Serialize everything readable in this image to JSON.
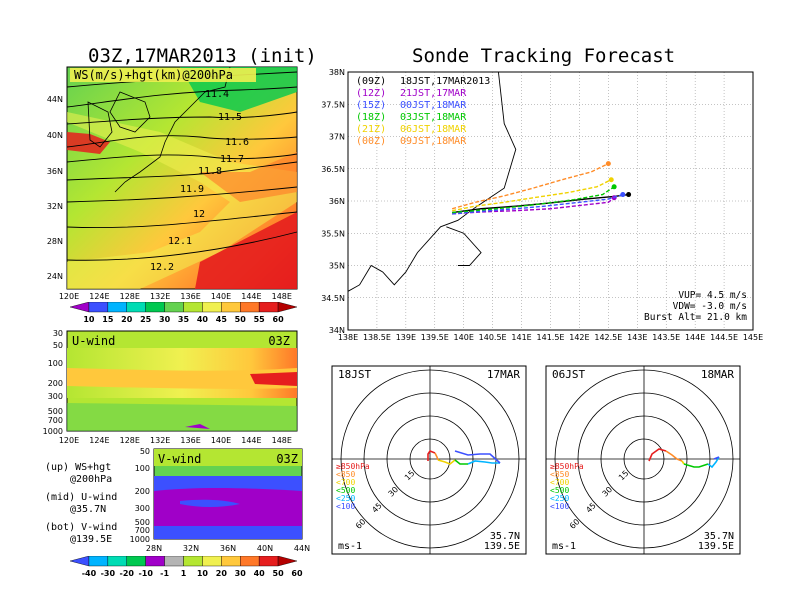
{
  "left": {
    "title": "03Z,17MAR2013 (init)",
    "map_overlay_label": "WS(m/s)+hgt(km)@200hPa",
    "contour_labels": [
      "11.4",
      "11.5",
      "11.6",
      "11.7",
      "11.8",
      "11.9",
      "12",
      "12.1",
      "12.2"
    ],
    "map_lat_ticks": [
      "44N",
      "40N",
      "36N",
      "32N",
      "28N",
      "24N"
    ],
    "lon_ticks": [
      "120E",
      "124E",
      "128E",
      "132E",
      "136E",
      "140E",
      "144E",
      "148E"
    ],
    "ws_colorbar": {
      "labels": [
        "10",
        "15",
        "20",
        "25",
        "30",
        "35",
        "40",
        "45",
        "50",
        "55",
        "60"
      ],
      "colors": [
        "#a000c8",
        "#3c50ff",
        "#00b4ff",
        "#00dcb4",
        "#00c850",
        "#64d250",
        "#b4e632",
        "#f0f050",
        "#ffc83c",
        "#ff7828",
        "#e61e1e",
        "#b40000"
      ]
    },
    "uwind": {
      "label": "U-wind",
      "time": "03Z",
      "p_ticks": [
        "30",
        "50",
        "100",
        "200",
        "300",
        "500",
        "700",
        "1000"
      ]
    },
    "vwind": {
      "label": "V-wind",
      "time": "03Z",
      "p_ticks": [
        "50",
        "100",
        "200",
        "300",
        "500",
        "700",
        "1000"
      ],
      "lat_ticks": [
        "28N",
        "32N",
        "36N",
        "40N",
        "44N"
      ]
    },
    "legend": [
      "(up) WS+hgt",
      "@200hPa",
      "(mid) U-wind",
      "@35.7N",
      "(bot) V-wind",
      "@139.5E"
    ],
    "wind_colorbar": {
      "labels": [
        "-40",
        "-30",
        "-20",
        "-10",
        "-1",
        "1",
        "10",
        "20",
        "30",
        "40",
        "50",
        "60"
      ],
      "colors": [
        "#3c50ff",
        "#00b4ff",
        "#00dcb4",
        "#00c850",
        "#a000c8",
        "#b4b4b4",
        "#b4e632",
        "#f0f050",
        "#ffc83c",
        "#ff7828",
        "#e61e1e",
        "#b40000"
      ]
    }
  },
  "right": {
    "title": "Sonde Tracking Forecast",
    "track_legend": [
      {
        "z": "(09Z)",
        "jst": "18JST,17MAR2013",
        "color": "#000000"
      },
      {
        "z": "(12Z)",
        "jst": "21JST,17MAR",
        "color": "#a000c8"
      },
      {
        "z": "(15Z)",
        "jst": "00JST,18MAR",
        "color": "#3c50ff"
      },
      {
        "z": "(18Z)",
        "jst": "03JST,18MAR",
        "color": "#00c800"
      },
      {
        "z": "(21Z)",
        "jst": "06JST,18MAR",
        "color": "#f0d200"
      },
      {
        "z": "(00Z)",
        "jst": "09JST,18MAR",
        "color": "#ff8c28"
      }
    ],
    "params": [
      "VUP= 4.5 m/s",
      "VDW= -3.0 m/s",
      "Burst Alt= 21.0 km"
    ],
    "lat_ticks": [
      "38N",
      "37.5N",
      "37N",
      "36.5N",
      "36N",
      "35.5N",
      "35N",
      "34.5N",
      "34N"
    ],
    "lon_ticks": [
      "138E",
      "138.5E",
      "139E",
      "139.5E",
      "140E",
      "140.5E",
      "141E",
      "141.5E",
      "142E",
      "142.5E",
      "143E",
      "143.5E",
      "144E",
      "144.5E",
      "145E"
    ],
    "hodographs": [
      {
        "time": "18JST",
        "date": "17MAR",
        "pos1": "35.7N",
        "pos2": "139.5E",
        "unit": "ms-1"
      },
      {
        "time": "06JST",
        "date": "18MAR",
        "pos1": "35.7N",
        "pos2": "139.5E",
        "unit": "ms-1"
      }
    ],
    "ring_labels": [
      "15",
      "30",
      "45",
      "60"
    ],
    "level_legend": [
      "≥850hPa",
      "<850",
      "<700",
      "<500",
      "<250",
      "<100"
    ],
    "level_colors": [
      "#e61e1e",
      "#ff8c28",
      "#f0d200",
      "#00c800",
      "#00b4ff",
      "#3c50ff"
    ]
  },
  "chart_data": [
    {
      "type": "line",
      "title": "Sonde Tracking Forecast",
      "xlabel": "",
      "ylabel": "",
      "xlim": [
        138,
        145
      ],
      "ylim": [
        34,
        38
      ],
      "series": [
        {
          "name": "18JST,17MAR2013",
          "x": [
            139.8,
            140.3,
            140.9,
            141.5,
            142.1,
            142.6,
            142.85
          ],
          "y": [
            35.82,
            35.88,
            35.92,
            35.97,
            36.03,
            36.07,
            36.1
          ]
        },
        {
          "name": "21JST,17MAR",
          "x": [
            139.8,
            140.3,
            140.9,
            141.5,
            142.0,
            142.5,
            142.6
          ],
          "y": [
            35.8,
            35.83,
            35.85,
            35.88,
            35.93,
            35.98,
            36.05
          ]
        },
        {
          "name": "00JST,18MAR",
          "x": [
            139.8,
            140.3,
            140.9,
            141.4,
            142.0,
            142.5,
            142.75
          ],
          "y": [
            35.8,
            35.84,
            35.88,
            35.92,
            35.98,
            36.03,
            36.1
          ]
        },
        {
          "name": "03JST,18MAR",
          "x": [
            139.8,
            140.3,
            140.8,
            141.3,
            141.9,
            142.4,
            142.6
          ],
          "y": [
            35.82,
            35.86,
            35.9,
            35.95,
            36.02,
            36.1,
            36.22
          ]
        },
        {
          "name": "06JST,18MAR",
          "x": [
            139.8,
            140.2,
            140.7,
            141.2,
            141.8,
            142.3,
            142.55
          ],
          "y": [
            35.85,
            35.92,
            35.98,
            36.05,
            36.13,
            36.22,
            36.33
          ]
        },
        {
          "name": "09JST,18MAR",
          "x": [
            139.8,
            140.2,
            140.7,
            141.2,
            141.7,
            142.2,
            142.5
          ],
          "y": [
            35.88,
            35.98,
            36.08,
            36.2,
            36.33,
            36.45,
            36.58
          ]
        }
      ]
    }
  ]
}
